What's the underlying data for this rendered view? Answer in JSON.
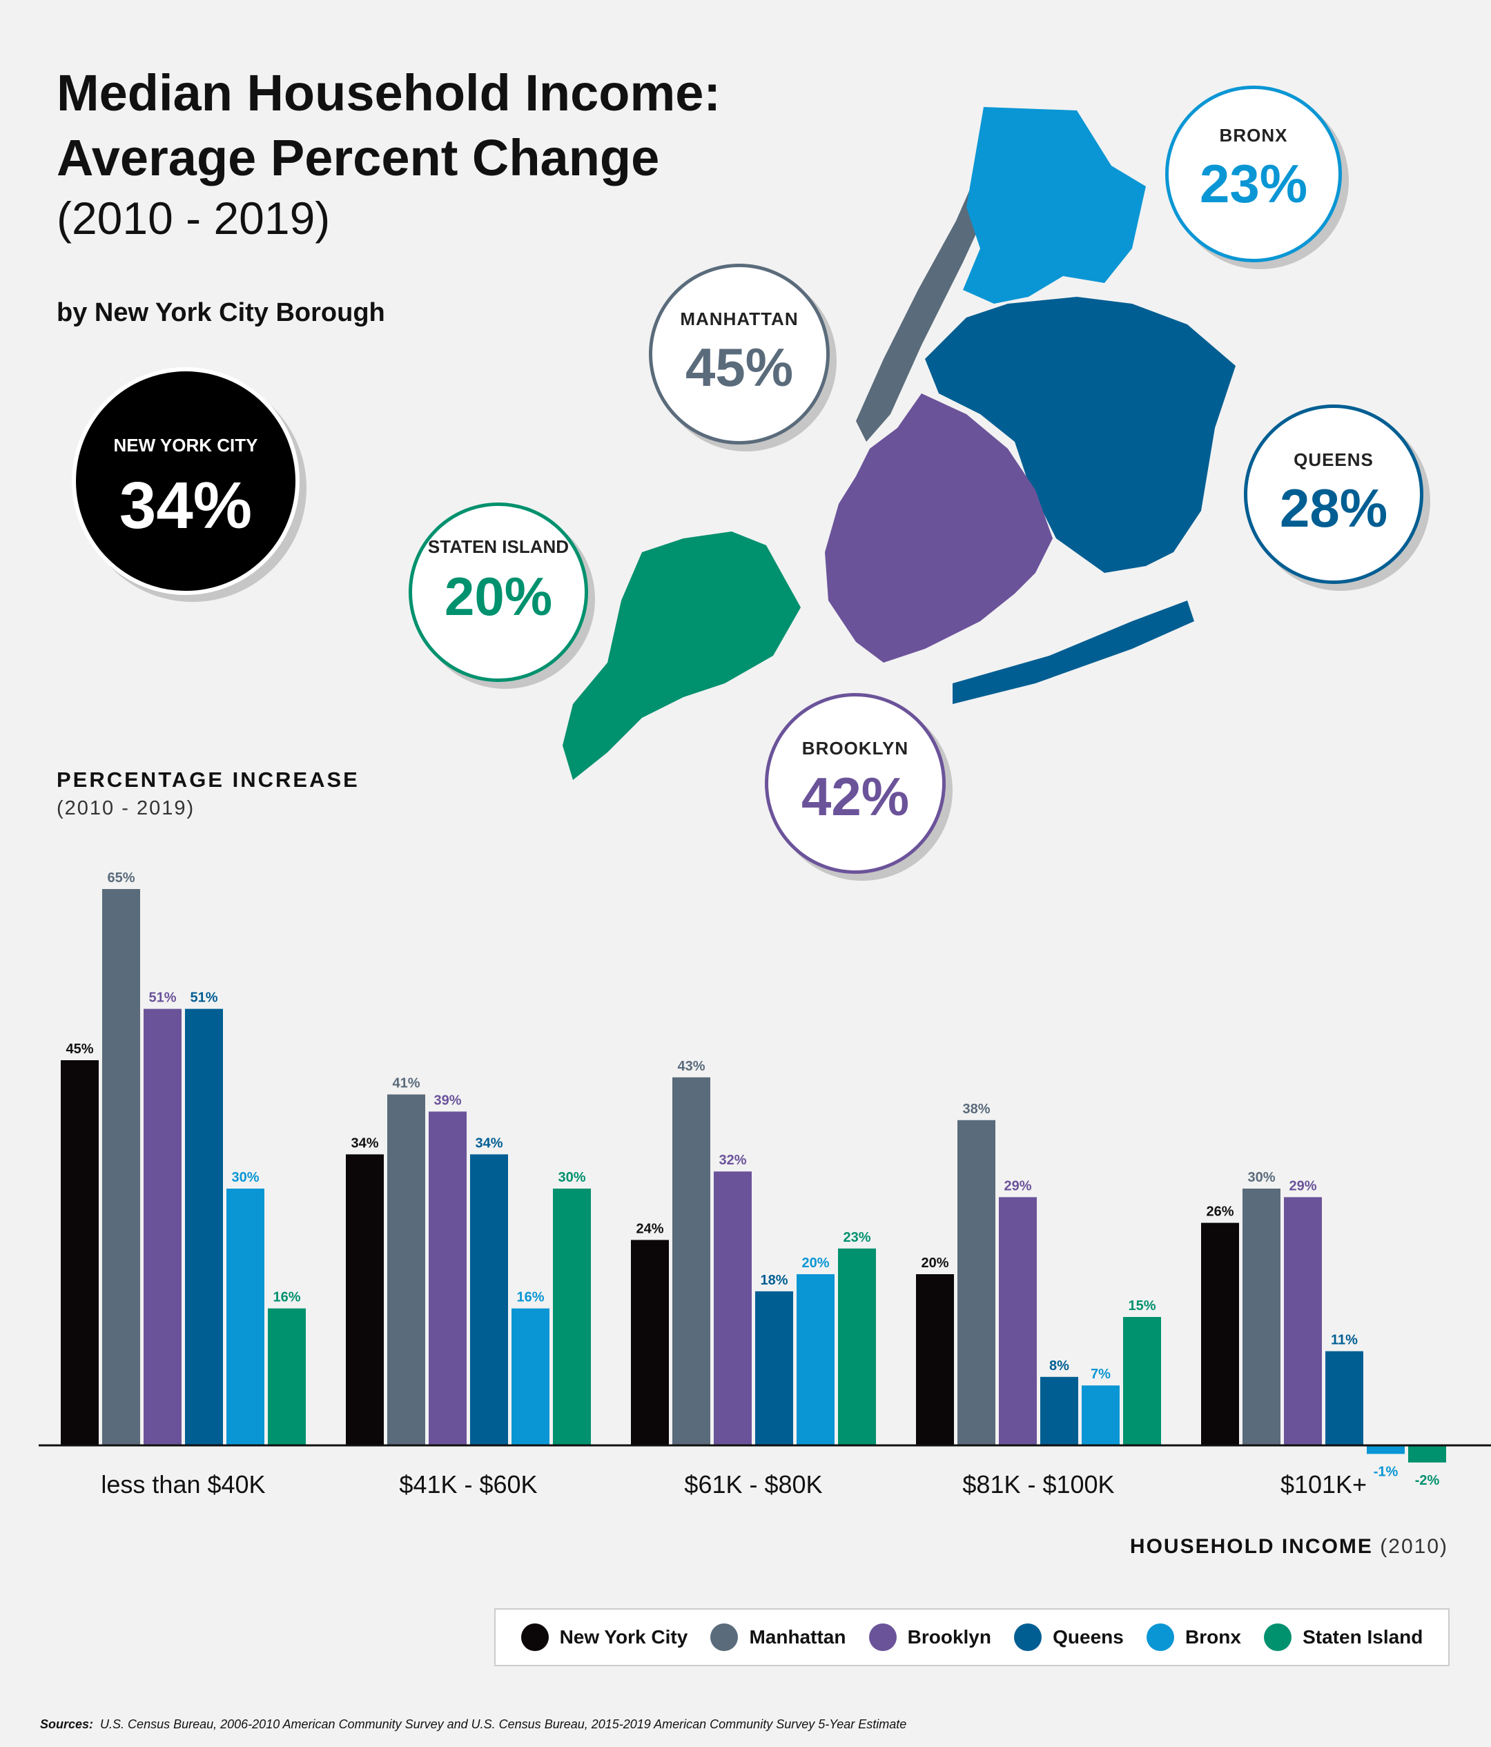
{
  "header": {
    "title_line1": "Median Household Income:",
    "title_line2": "Average Percent Change",
    "years": "(2010 - 2019)",
    "byline": "by New York City Borough"
  },
  "callouts": {
    "nyc": {
      "label": "NEW YORK CITY",
      "value": "34%",
      "color": "#000000"
    },
    "bronx": {
      "label": "BRONX",
      "value": "23%",
      "color": "#0a96d4"
    },
    "manhattan": {
      "label": "MANHATTAN",
      "value": "45%",
      "color": "#5a6b7b"
    },
    "queens": {
      "label": "QUEENS",
      "value": "28%",
      "color": "#005e92"
    },
    "staten_island": {
      "label": "STATEN ISLAND",
      "value": "20%",
      "color": "#00916e"
    },
    "brooklyn": {
      "label": "BROOKLYN",
      "value": "42%",
      "color": "#6b539a"
    }
  },
  "chart_data": {
    "type": "bar",
    "ylabel": "PERCENTAGE INCREASE",
    "ylabel_sub": "(2010 - 2019)",
    "xlabel": "HOUSEHOLD INCOME",
    "xlabel_sub": "(2010)",
    "categories": [
      "less than $40K",
      "$41K - $60K",
      "$61K - $80K",
      "$81K - $100K",
      "$101K+"
    ],
    "series": [
      {
        "name": "New York City",
        "color": "#0b0608",
        "values": [
          45,
          34,
          24,
          20,
          26
        ]
      },
      {
        "name": "Manhattan",
        "color": "#5a6b7b",
        "values": [
          65,
          41,
          43,
          38,
          30
        ]
      },
      {
        "name": "Brooklyn",
        "color": "#6b539a",
        "values": [
          51,
          39,
          32,
          29,
          29
        ]
      },
      {
        "name": "Queens",
        "color": "#005e92",
        "values": [
          51,
          34,
          18,
          8,
          11
        ]
      },
      {
        "name": "Bronx",
        "color": "#0a96d4",
        "values": [
          30,
          16,
          20,
          7,
          -1
        ]
      },
      {
        "name": "Staten Island",
        "color": "#00916e",
        "values": [
          16,
          30,
          23,
          15,
          -2
        ]
      }
    ],
    "grid": false,
    "legend_position": "bottom-right"
  },
  "sources": {
    "label": "Sources:",
    "text": "U.S. Census Bureau, 2006-2010 American Community Survey and U.S. Census Bureau, 2015-2019 American Community Survey 5-Year Estimate"
  }
}
